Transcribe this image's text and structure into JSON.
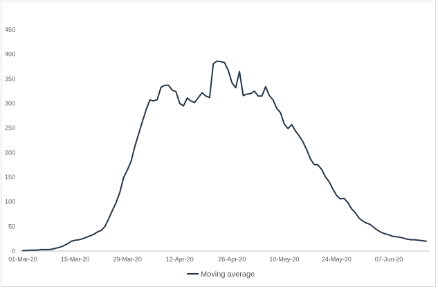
{
  "chart_data": {
    "type": "line",
    "title": "",
    "xlabel": "",
    "ylabel": "",
    "ylim": [
      0,
      450
    ],
    "yticks": [
      0,
      50,
      100,
      150,
      200,
      250,
      300,
      350,
      400,
      450
    ],
    "xtick_labels": [
      "01-Mar-20",
      "15-Mar-20",
      "29-Mar-20",
      "12-Apr-20",
      "26-Apr-20",
      "10-May-20",
      "24-May-20",
      "07-Jun-20"
    ],
    "xtick_index": [
      0,
      14,
      28,
      42,
      56,
      70,
      84,
      98
    ],
    "x_start": "01-Mar-20",
    "x_step_days": 1,
    "legend_position": "bottom",
    "grid": false,
    "line_color": "#243448",
    "series": [
      {
        "name": "Moving average",
        "values": [
          1,
          1,
          2,
          2,
          2,
          3,
          3,
          3,
          4,
          6,
          8,
          11,
          15,
          20,
          22,
          23,
          25,
          28,
          31,
          34,
          39,
          42,
          50,
          66,
          83,
          99,
          120,
          150,
          165,
          183,
          213,
          238,
          263,
          287,
          307,
          305,
          308,
          333,
          337,
          337,
          327,
          324,
          300,
          295,
          311,
          305,
          302,
          312,
          322,
          315,
          312,
          381,
          386,
          385,
          383,
          367,
          342,
          332,
          365,
          316,
          319,
          320,
          325,
          315,
          315,
          334,
          316,
          307,
          290,
          281,
          258,
          249,
          257,
          244,
          234,
          222,
          206,
          187,
          176,
          175,
          166,
          151,
          141,
          126,
          113,
          106,
          107,
          99,
          86,
          78,
          67,
          61,
          57,
          54,
          48,
          42,
          38,
          35,
          33,
          30,
          29,
          28,
          26,
          24,
          23,
          23,
          22,
          21,
          20
        ]
      }
    ]
  }
}
